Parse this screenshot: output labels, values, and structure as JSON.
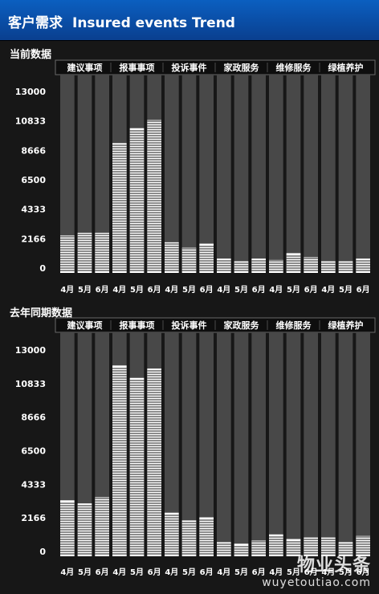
{
  "header": {
    "title_cn": "客户需求",
    "title_en": "Insured events Trend"
  },
  "colors": {
    "header_bg": "#0a4fae",
    "panel_bg": "#171717",
    "column_bg": "#484848",
    "bar": "#ffffff"
  },
  "chart_data": [
    {
      "type": "bar",
      "title": "当前数据",
      "groups": [
        "建议事项",
        "报事事项",
        "投诉事件",
        "家政服务",
        "维修服务",
        "绿植养护"
      ],
      "categories": [
        "4月",
        "5月",
        "6月",
        "4月",
        "5月",
        "6月",
        "4月",
        "5月",
        "6月",
        "4月",
        "5月",
        "6月",
        "4月",
        "5月",
        "6月",
        "4月",
        "5月",
        "6月"
      ],
      "values": [
        2400,
        2600,
        2600,
        9200,
        10300,
        10900,
        1900,
        1500,
        1800,
        700,
        500,
        700,
        600,
        1100,
        800,
        500,
        500,
        700
      ],
      "yticks": [
        0,
        2166,
        4333,
        6500,
        8666,
        10833,
        13000
      ],
      "ylim": [
        0,
        13000
      ]
    },
    {
      "type": "bar",
      "title": "去年同期数据",
      "groups": [
        "建议事项",
        "报事事项",
        "投诉事件",
        "家政服务",
        "维修服务",
        "绿植养护"
      ],
      "categories": [
        "4月",
        "5月",
        "6月",
        "4月",
        "5月",
        "6月",
        "4月",
        "5月",
        "6月",
        "4月",
        "5月",
        "6月",
        "4月",
        "5月",
        "6月",
        "4月",
        "5月",
        "6月"
      ],
      "values": [
        3300,
        3100,
        3500,
        12000,
        11200,
        11800,
        2500,
        2000,
        2200,
        600,
        500,
        700,
        1100,
        800,
        900,
        900,
        600,
        1000
      ],
      "yticks": [
        0,
        2166,
        4333,
        6500,
        8666,
        10833,
        13000
      ],
      "ylim": [
        0,
        13000
      ]
    }
  ],
  "watermark": {
    "main": "物业头条",
    "sub": "wuyetoutiao.com"
  }
}
